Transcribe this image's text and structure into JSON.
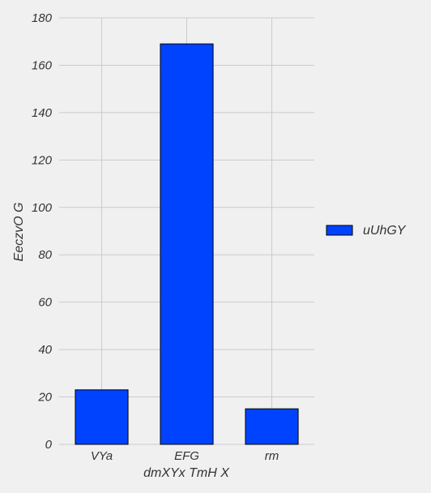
{
  "chart_data": {
    "type": "bar",
    "title": "",
    "xlabel": "dmXYx TmH X",
    "ylabel": "EeczvO G",
    "categories": [
      "VYa",
      "EFG",
      "rm"
    ],
    "series": [
      {
        "name": "uUhGY",
        "values": [
          23,
          169,
          15
        ]
      }
    ],
    "ylim": [
      0,
      180
    ],
    "yticks": [
      0,
      20,
      40,
      60,
      80,
      100,
      120,
      140,
      160,
      180
    ],
    "grid": true,
    "legend_position": "right",
    "bar_color": "#0043ff",
    "edge_color": "#000000"
  }
}
